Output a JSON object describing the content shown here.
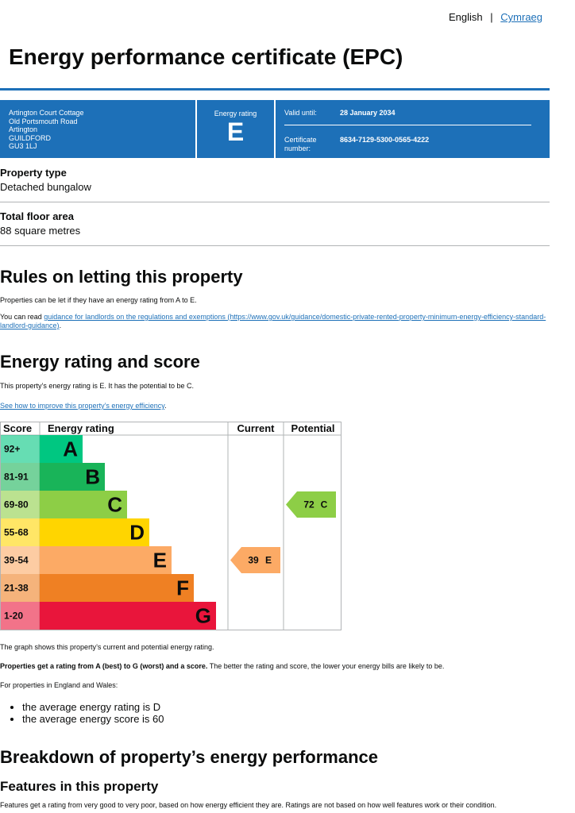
{
  "lang": {
    "english": "English",
    "welsh": "Cymraeg"
  },
  "title": "Energy performance certificate (EPC)",
  "summary": {
    "address": [
      "Artington Court Cottage",
      "Old Portsmouth Road",
      "Artington",
      "GUILDFORD",
      "GU3 1LJ"
    ],
    "rating_label": "Energy rating",
    "rating": "E",
    "valid_label": "Valid until:",
    "valid": "28 January 2034",
    "cert_label": "Certificate number:",
    "cert": "8634-7129-5300-0565-4222"
  },
  "property": [
    {
      "label": "Property type",
      "value": "Detached bungalow"
    },
    {
      "label": "Total floor area",
      "value": "88 square metres"
    }
  ],
  "letting": {
    "heading": "Rules on letting this property",
    "p1": "Properties can be let if they have an energy rating from A to E.",
    "p2_prefix": "You can read ",
    "p2_link": "guidance for landlords on the regulations and exemptions (https://www.gov.uk/guidance/domestic-private-rented-property-minimum-energy-efficiency-standard-landlord-guidance)",
    "p2_suffix": "."
  },
  "rating_section": {
    "heading": "Energy rating and score",
    "p1": "This property’s energy rating is E. It has the potential to be C.",
    "link": "See how to improve this property’s energy efficiency",
    "link_suffix": ".",
    "table": {
      "headers": [
        "Score",
        "Energy rating",
        "Current",
        "Potential"
      ],
      "bands": [
        {
          "score": "92+",
          "letter": "A",
          "color": "#00c781"
        },
        {
          "score": "81-91",
          "letter": "B",
          "color": "#19b459"
        },
        {
          "score": "69-80",
          "letter": "C",
          "color": "#8dce46"
        },
        {
          "score": "55-68",
          "letter": "D",
          "color": "#ffd500"
        },
        {
          "score": "39-54",
          "letter": "E",
          "color": "#fcaa65"
        },
        {
          "score": "21-38",
          "letter": "F",
          "color": "#ef8023"
        },
        {
          "score": "1-20",
          "letter": "G",
          "color": "#e9153b"
        }
      ],
      "current": {
        "score": 39,
        "letter": "E"
      },
      "potential": {
        "score": 72,
        "letter": "C"
      }
    },
    "p2": "The graph shows this property’s current and potential energy rating.",
    "p3_bold": "Properties get a rating from A (best) to G (worst) and a score.",
    "p3_rest": " The better the rating and score, the lower your energy bills are likely to be.",
    "p4": "For properties in England and Wales:",
    "bullets": [
      "the average energy rating is D",
      "the average energy score is 60"
    ]
  },
  "breakdown": {
    "heading": "Breakdown of property’s energy performance",
    "subheading": "Features in this property",
    "p": "Features get a rating from very good to very poor, based on how energy efficient they are. Ratings are not based on how well features work or their condition."
  }
}
